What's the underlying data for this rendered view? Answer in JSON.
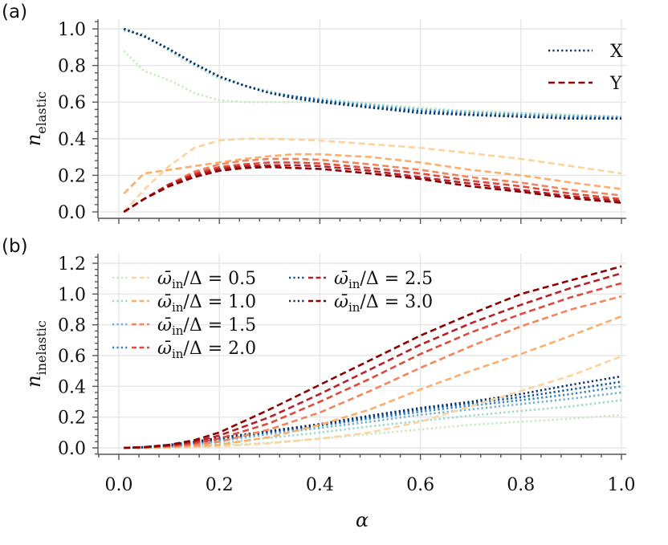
{
  "chart_data": [
    {
      "type": "line",
      "panel_label": "(a)",
      "xlabel": "",
      "ylabel_main": "n",
      "ylabel_sub": "elastic",
      "xlim": [
        0.0,
        1.0
      ],
      "ylim": [
        0.0,
        1.0
      ],
      "yticks": [
        0.0,
        0.2,
        0.4,
        0.6,
        0.8,
        1.0
      ],
      "ytick_labels": [
        "0.0",
        "0.2",
        "0.4",
        "0.6",
        "0.8",
        "1.0"
      ],
      "legend": {
        "placement": "top-right",
        "entries": [
          {
            "label": "X",
            "style": "dotted",
            "color": "#08306b"
          },
          {
            "label": "Y",
            "style": "dashed",
            "color": "#8b0000"
          }
        ]
      },
      "x": [
        0.01,
        0.05,
        0.1,
        0.15,
        0.2,
        0.25,
        0.3,
        0.35,
        0.4,
        0.5,
        0.6,
        0.7,
        0.8,
        0.9,
        1.0
      ],
      "series": [
        {
          "name": "X, ω̄in/Δ = 0.5",
          "style": "dotted",
          "color": "#c7e9c0",
          "values": [
            0.88,
            0.77,
            0.72,
            0.65,
            0.61,
            0.6,
            0.6,
            0.6,
            0.6,
            0.59,
            0.57,
            0.55,
            0.54,
            0.53,
            0.52
          ]
        },
        {
          "name": "X, ω̄in/Δ = 1.0",
          "style": "dotted",
          "color": "#99d8c9",
          "values": [
            0.99,
            0.97,
            0.88,
            0.8,
            0.73,
            0.69,
            0.66,
            0.63,
            0.62,
            0.59,
            0.56,
            0.55,
            0.54,
            0.53,
            0.52
          ]
        },
        {
          "name": "X, ω̄in/Δ = 1.5",
          "style": "dotted",
          "color": "#6baed6",
          "values": [
            1.0,
            0.96,
            0.89,
            0.81,
            0.74,
            0.69,
            0.65,
            0.63,
            0.61,
            0.58,
            0.56,
            0.54,
            0.53,
            0.52,
            0.52
          ]
        },
        {
          "name": "X, ω̄in/Δ = 2.0",
          "style": "dotted",
          "color": "#3182bd",
          "values": [
            1.0,
            0.96,
            0.89,
            0.81,
            0.74,
            0.69,
            0.65,
            0.63,
            0.61,
            0.58,
            0.55,
            0.54,
            0.53,
            0.52,
            0.51
          ]
        },
        {
          "name": "X, ω̄in/Δ = 2.5",
          "style": "dotted",
          "color": "#08519c",
          "values": [
            1.0,
            0.96,
            0.89,
            0.81,
            0.74,
            0.69,
            0.65,
            0.63,
            0.61,
            0.57,
            0.55,
            0.53,
            0.52,
            0.51,
            0.51
          ]
        },
        {
          "name": "X, ω̄in/Δ = 3.0",
          "style": "dotted",
          "color": "#08306b",
          "values": [
            1.0,
            0.96,
            0.89,
            0.81,
            0.74,
            0.69,
            0.65,
            0.62,
            0.6,
            0.57,
            0.54,
            0.53,
            0.52,
            0.51,
            0.51
          ]
        },
        {
          "name": "Y, ω̄in/Δ = 0.5",
          "style": "dashed",
          "color": "#fdd49e",
          "values": [
            0.0,
            0.12,
            0.25,
            0.35,
            0.39,
            0.4,
            0.4,
            0.395,
            0.39,
            0.37,
            0.35,
            0.32,
            0.29,
            0.25,
            0.21
          ]
        },
        {
          "name": "Y, ω̄in/Δ = 1.0",
          "style": "dashed",
          "color": "#fdae6b",
          "values": [
            0.1,
            0.21,
            0.23,
            0.25,
            0.27,
            0.29,
            0.305,
            0.315,
            0.315,
            0.3,
            0.27,
            0.23,
            0.2,
            0.16,
            0.125
          ]
        },
        {
          "name": "Y, ω̄in/Δ = 1.5",
          "style": "dashed",
          "color": "#f4845c",
          "values": [
            0.0,
            0.07,
            0.15,
            0.22,
            0.26,
            0.28,
            0.29,
            0.29,
            0.285,
            0.26,
            0.23,
            0.19,
            0.16,
            0.12,
            0.09
          ]
        },
        {
          "name": "Y, ω̄in/Δ = 2.0",
          "style": "dashed",
          "color": "#de4a3a",
          "values": [
            0.0,
            0.07,
            0.15,
            0.21,
            0.245,
            0.26,
            0.27,
            0.27,
            0.265,
            0.24,
            0.21,
            0.17,
            0.14,
            0.1,
            0.07
          ]
        },
        {
          "name": "Y, ω̄in/Δ = 2.5",
          "style": "dashed",
          "color": "#b7202a",
          "values": [
            0.0,
            0.07,
            0.15,
            0.2,
            0.235,
            0.25,
            0.255,
            0.255,
            0.25,
            0.225,
            0.19,
            0.155,
            0.12,
            0.085,
            0.06
          ]
        },
        {
          "name": "Y, ω̄in/Δ = 3.0",
          "style": "dashed",
          "color": "#8b0000",
          "values": [
            0.0,
            0.07,
            0.14,
            0.19,
            0.225,
            0.24,
            0.245,
            0.24,
            0.235,
            0.21,
            0.18,
            0.14,
            0.11,
            0.075,
            0.05
          ]
        }
      ]
    },
    {
      "type": "line",
      "panel_label": "(b)",
      "xlabel": "α",
      "ylabel_main": "n",
      "ylabel_sub": "inelastic",
      "xlim": [
        0.0,
        1.0
      ],
      "ylim": [
        0.0,
        1.2
      ],
      "xticks": [
        0.0,
        0.2,
        0.4,
        0.6,
        0.8,
        1.0
      ],
      "xtick_labels": [
        "0.0",
        "0.2",
        "0.4",
        "0.6",
        "0.8",
        "1.0"
      ],
      "yticks": [
        0.0,
        0.2,
        0.4,
        0.6,
        0.8,
        1.0,
        1.2
      ],
      "ytick_labels": [
        "0.0",
        "0.2",
        "0.4",
        "0.6",
        "0.8",
        "1.0",
        "1.2"
      ],
      "legend": {
        "placement": "top-left",
        "entries": [
          {
            "label": "ω̄in/Δ = 0.5",
            "label_value": "0.5",
            "dotted_color": "#c7e9c0",
            "dashed_color": "#fdd49e"
          },
          {
            "label": "ω̄in/Δ = 1.0",
            "label_value": "1.0",
            "dotted_color": "#99d8c9",
            "dashed_color": "#fdae6b"
          },
          {
            "label": "ω̄in/Δ = 1.5",
            "label_value": "1.5",
            "dotted_color": "#6baed6",
            "dashed_color": "#f4845c"
          },
          {
            "label": "ω̄in/Δ = 2.0",
            "label_value": "2.0",
            "dotted_color": "#3182bd",
            "dashed_color": "#de4a3a"
          },
          {
            "label": "ω̄in/Δ = 2.5",
            "label_value": "2.5",
            "dotted_color": "#08519c",
            "dashed_color": "#b7202a"
          },
          {
            "label": "ω̄in/Δ = 3.0",
            "label_value": "3.0",
            "dotted_color": "#08306b",
            "dashed_color": "#8b0000"
          }
        ]
      },
      "x": [
        0.01,
        0.05,
        0.1,
        0.15,
        0.2,
        0.3,
        0.4,
        0.5,
        0.6,
        0.7,
        0.8,
        0.9,
        1.0
      ],
      "series": [
        {
          "name": "X, ω̄in/Δ = 0.5",
          "style": "dotted",
          "color": "#c7e9c0",
          "values": [
            0.0,
            0.0,
            0.003,
            0.008,
            0.015,
            0.035,
            0.06,
            0.09,
            0.12,
            0.15,
            0.17,
            0.19,
            0.215
          ]
        },
        {
          "name": "X, ω̄in/Δ = 1.0",
          "style": "dotted",
          "color": "#99d8c9",
          "values": [
            0.0,
            0.001,
            0.006,
            0.015,
            0.03,
            0.065,
            0.1,
            0.14,
            0.175,
            0.21,
            0.24,
            0.27,
            0.31
          ]
        },
        {
          "name": "X, ω̄in/Δ = 1.5",
          "style": "dotted",
          "color": "#6baed6",
          "values": [
            0.0,
            0.002,
            0.01,
            0.025,
            0.045,
            0.09,
            0.13,
            0.17,
            0.215,
            0.25,
            0.285,
            0.32,
            0.36
          ]
        },
        {
          "name": "X, ω̄in/Δ = 2.0",
          "style": "dotted",
          "color": "#3182bd",
          "values": [
            0.0,
            0.003,
            0.013,
            0.03,
            0.055,
            0.1,
            0.145,
            0.19,
            0.235,
            0.275,
            0.31,
            0.35,
            0.4
          ]
        },
        {
          "name": "X, ω̄in/Δ = 2.5",
          "style": "dotted",
          "color": "#08519c",
          "values": [
            0.0,
            0.004,
            0.016,
            0.035,
            0.06,
            0.105,
            0.15,
            0.2,
            0.25,
            0.29,
            0.33,
            0.38,
            0.43
          ]
        },
        {
          "name": "X, ω̄in/Δ = 3.0",
          "style": "dotted",
          "color": "#08306b",
          "values": [
            0.0,
            0.005,
            0.02,
            0.04,
            0.065,
            0.11,
            0.155,
            0.21,
            0.26,
            0.3,
            0.35,
            0.41,
            0.465
          ]
        },
        {
          "name": "Y, ω̄in/Δ = 0.5",
          "style": "dashed",
          "color": "#fdd49e",
          "values": [
            0.0,
            0.0,
            0.002,
            0.005,
            0.01,
            0.03,
            0.06,
            0.1,
            0.17,
            0.27,
            0.37,
            0.47,
            0.595
          ]
        },
        {
          "name": "Y, ω̄in/Δ = 1.0",
          "style": "dashed",
          "color": "#fdae6b",
          "values": [
            0.0,
            0.001,
            0.004,
            0.01,
            0.02,
            0.07,
            0.15,
            0.25,
            0.38,
            0.5,
            0.61,
            0.73,
            0.855
          ]
        },
        {
          "name": "Y, ω̄in/Δ = 1.5",
          "style": "dashed",
          "color": "#f4845c",
          "values": [
            0.0,
            0.002,
            0.008,
            0.02,
            0.04,
            0.12,
            0.23,
            0.37,
            0.52,
            0.66,
            0.79,
            0.9,
            0.985
          ]
        },
        {
          "name": "Y, ω̄in/Δ = 2.0",
          "style": "dashed",
          "color": "#de4a3a",
          "values": [
            0.0,
            0.003,
            0.012,
            0.03,
            0.06,
            0.16,
            0.3,
            0.45,
            0.61,
            0.75,
            0.87,
            0.98,
            1.07
          ]
        },
        {
          "name": "Y, ω̄in/Δ = 2.5",
          "style": "dashed",
          "color": "#b7202a",
          "values": [
            0.0,
            0.004,
            0.016,
            0.04,
            0.08,
            0.2,
            0.35,
            0.51,
            0.67,
            0.81,
            0.93,
            1.04,
            1.135
          ]
        },
        {
          "name": "Y, ω̄in/Δ = 3.0",
          "style": "dashed",
          "color": "#8b0000",
          "values": [
            0.0,
            0.005,
            0.02,
            0.05,
            0.1,
            0.25,
            0.41,
            0.57,
            0.73,
            0.87,
            1.0,
            1.09,
            1.18
          ]
        }
      ]
    }
  ]
}
